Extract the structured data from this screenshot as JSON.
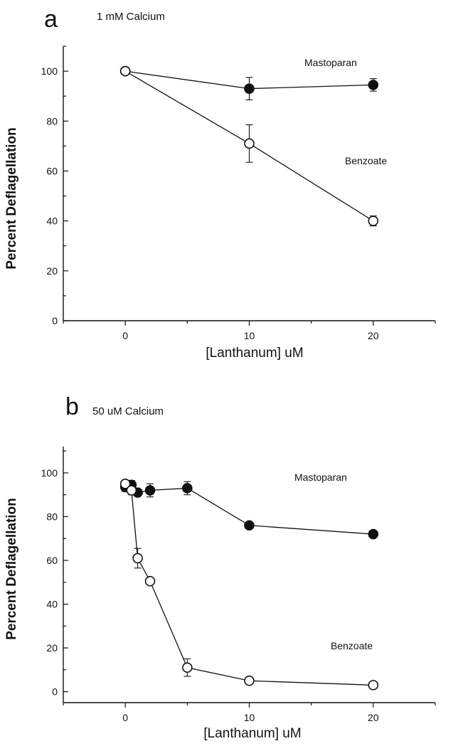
{
  "chart_data": [
    {
      "panel": "a",
      "subtitle": "1 mM Calcium",
      "type": "line",
      "xlabel": "[Lanthanum] uM",
      "ylabel": "Percent Deflagellation",
      "xlim": [
        -5,
        25
      ],
      "ylim": [
        0,
        110
      ],
      "xticks": [
        0,
        10,
        20
      ],
      "yticks": [
        0,
        20,
        40,
        60,
        80,
        100
      ],
      "series": [
        {
          "name": "Mastoparan",
          "marker": "filled-circle",
          "x": [
            0,
            10,
            20
          ],
          "values": [
            100,
            93,
            94.5
          ],
          "errors": [
            0,
            4.5,
            2.5
          ]
        },
        {
          "name": "Benzoate",
          "marker": "open-circle",
          "x": [
            0,
            10,
            20
          ],
          "values": [
            100,
            71,
            40
          ],
          "errors": [
            0,
            7.5,
            2
          ]
        }
      ]
    },
    {
      "panel": "b",
      "subtitle": "50 uM Calcium",
      "type": "line",
      "xlabel": "[Lanthanum] uM",
      "ylabel": "Percent Deflagellation",
      "xlim": [
        -5,
        25
      ],
      "ylim": [
        -5,
        112
      ],
      "xticks": [
        0,
        10,
        20
      ],
      "yticks": [
        0,
        20,
        40,
        60,
        80,
        100
      ],
      "series": [
        {
          "name": "Mastoparan",
          "marker": "filled-circle",
          "x": [
            0,
            0.5,
            1,
            2,
            5,
            10,
            20
          ],
          "values": [
            93.5,
            94.5,
            91,
            92,
            93,
            76,
            72
          ],
          "errors": [
            2,
            2,
            1.5,
            3,
            3,
            1.5,
            1.5
          ]
        },
        {
          "name": "Benzoate",
          "marker": "open-circle",
          "x": [
            0,
            0.5,
            1,
            2,
            5,
            10,
            20
          ],
          "values": [
            95,
            92,
            61,
            50.5,
            11,
            5,
            3
          ],
          "errors": [
            1.5,
            2,
            4.5,
            1.5,
            4,
            1,
            1
          ]
        }
      ]
    }
  ]
}
